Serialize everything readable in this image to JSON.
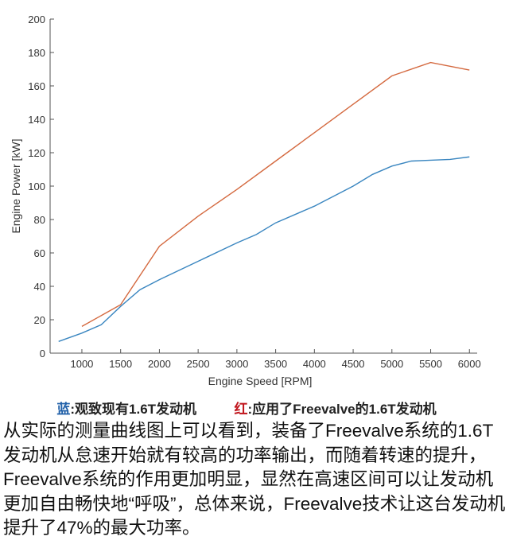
{
  "chart_data": {
    "type": "line",
    "xlabel": "Engine Speed [RPM]",
    "ylabel": "Engine Power [kW]",
    "xlim": [
      590,
      6100
    ],
    "ylim": [
      0,
      200
    ],
    "xticks": [
      1000,
      1500,
      2000,
      2500,
      3000,
      3500,
      4000,
      4500,
      5000,
      5500,
      6000
    ],
    "yticks": [
      0,
      20,
      40,
      60,
      80,
      100,
      120,
      140,
      160,
      180,
      200
    ],
    "grid": false,
    "series": [
      {
        "color": "#3a86c0",
        "x": [
          700,
          1000,
          1250,
          1500,
          1750,
          2000,
          2500,
          3000,
          3250,
          3500,
          4000,
          4250,
          4500,
          4750,
          5000,
          5250,
          5500,
          5750,
          6000
        ],
        "y": [
          7,
          12,
          17,
          28,
          38,
          44,
          55,
          66,
          71,
          78,
          88,
          94,
          100,
          107,
          112,
          115,
          115.5,
          116,
          117.5
        ]
      },
      {
        "color": "#d4693f",
        "x": [
          1000,
          1500,
          2000,
          2500,
          3000,
          3500,
          4000,
          4500,
          5000,
          5500,
          6000
        ],
        "y": [
          16,
          29,
          64,
          82,
          98,
          115,
          132,
          149,
          166,
          174,
          169.5
        ]
      }
    ]
  },
  "legend": {
    "blue_key": "蓝",
    "blue_text": "观致现有1.6T发动机",
    "red_key": "红",
    "red_text": "应用了Freevalve的1.6T发动机",
    "separator": ":"
  },
  "paragraph": [
    "从实际的测量曲线图上可以看到，装备了Freevalve系统的1.6T",
    "发动机从怠速开始就有较高的功率输出，而随着转速的提升，",
    "Freevalve系统的作用更加明显，显然在高速区间可以让发动机",
    "更加自由畅快地“呼吸”，总体来说，Freevalve技术让这台发动机",
    "提升了47%的最大功率。"
  ]
}
